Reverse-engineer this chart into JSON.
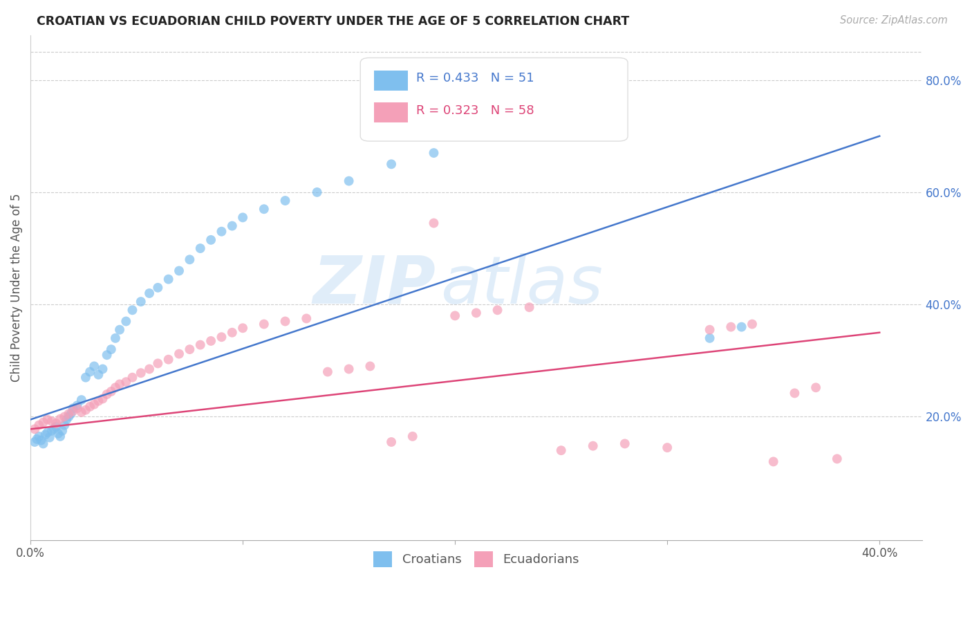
{
  "title": "CROATIAN VS ECUADORIAN CHILD POVERTY UNDER THE AGE OF 5 CORRELATION CHART",
  "source": "Source: ZipAtlas.com",
  "ylabel": "Child Poverty Under the Age of 5",
  "xlim": [
    0.0,
    0.42
  ],
  "ylim": [
    -0.02,
    0.88
  ],
  "x_ticks": [
    0.0,
    0.1,
    0.2,
    0.3,
    0.4
  ],
  "x_tick_labels": [
    "0.0%",
    "",
    "",
    "",
    "40.0%"
  ],
  "y_ticks_right": [
    0.2,
    0.4,
    0.6,
    0.8
  ],
  "y_tick_labels_right": [
    "20.0%",
    "40.0%",
    "60.0%",
    "80.0%"
  ],
  "croatian_color": "#7fbfee",
  "ecuadorian_color": "#f4a0b8",
  "croatian_line_color": "#4477cc",
  "ecuadorian_line_color": "#dd4477",
  "croatian_R": 0.433,
  "croatian_N": 51,
  "ecuadorian_R": 0.323,
  "ecuadorian_N": 58,
  "watermark_zip": "ZIP",
  "watermark_atlas": "atlas",
  "grid_color": "#cccccc",
  "bg_color": "#ffffff",
  "title_color": "#222222",
  "source_color": "#aaaaaa",
  "axis_label_color": "#555555",
  "tick_color": "#aaaaaa",
  "legend_border_color": "#dddddd",
  "croatian_x": [
    0.002,
    0.003,
    0.004,
    0.005,
    0.006,
    0.007,
    0.008,
    0.009,
    0.01,
    0.011,
    0.012,
    0.013,
    0.014,
    0.015,
    0.016,
    0.017,
    0.018,
    0.019,
    0.02,
    0.022,
    0.024,
    0.026,
    0.028,
    0.03,
    0.032,
    0.034,
    0.036,
    0.038,
    0.04,
    0.042,
    0.045,
    0.048,
    0.052,
    0.056,
    0.06,
    0.065,
    0.07,
    0.075,
    0.08,
    0.085,
    0.09,
    0.095,
    0.1,
    0.11,
    0.12,
    0.135,
    0.15,
    0.17,
    0.19,
    0.32,
    0.335
  ],
  "croatian_y": [
    0.155,
    0.16,
    0.165,
    0.158,
    0.152,
    0.168,
    0.172,
    0.163,
    0.175,
    0.178,
    0.182,
    0.17,
    0.165,
    0.175,
    0.185,
    0.195,
    0.2,
    0.205,
    0.215,
    0.22,
    0.23,
    0.27,
    0.28,
    0.29,
    0.275,
    0.285,
    0.31,
    0.32,
    0.34,
    0.355,
    0.37,
    0.39,
    0.405,
    0.42,
    0.43,
    0.445,
    0.46,
    0.48,
    0.5,
    0.515,
    0.53,
    0.54,
    0.555,
    0.57,
    0.585,
    0.6,
    0.62,
    0.65,
    0.67,
    0.34,
    0.36
  ],
  "ecuadorian_x": [
    0.002,
    0.004,
    0.006,
    0.008,
    0.01,
    0.012,
    0.014,
    0.016,
    0.018,
    0.02,
    0.022,
    0.024,
    0.026,
    0.028,
    0.03,
    0.032,
    0.034,
    0.036,
    0.038,
    0.04,
    0.042,
    0.045,
    0.048,
    0.052,
    0.056,
    0.06,
    0.065,
    0.07,
    0.075,
    0.08,
    0.085,
    0.09,
    0.095,
    0.1,
    0.11,
    0.12,
    0.13,
    0.14,
    0.15,
    0.16,
    0.17,
    0.18,
    0.19,
    0.2,
    0.21,
    0.22,
    0.235,
    0.25,
    0.265,
    0.28,
    0.3,
    0.32,
    0.33,
    0.34,
    0.35,
    0.36,
    0.37,
    0.38
  ],
  "ecuadorian_y": [
    0.178,
    0.185,
    0.19,
    0.195,
    0.192,
    0.188,
    0.196,
    0.2,
    0.205,
    0.21,
    0.215,
    0.208,
    0.212,
    0.218,
    0.222,
    0.228,
    0.232,
    0.24,
    0.245,
    0.252,
    0.258,
    0.262,
    0.27,
    0.278,
    0.285,
    0.295,
    0.302,
    0.312,
    0.32,
    0.328,
    0.335,
    0.342,
    0.35,
    0.358,
    0.365,
    0.37,
    0.375,
    0.28,
    0.285,
    0.29,
    0.155,
    0.165,
    0.545,
    0.38,
    0.385,
    0.39,
    0.395,
    0.14,
    0.148,
    0.152,
    0.145,
    0.355,
    0.36,
    0.365,
    0.12,
    0.242,
    0.252,
    0.125
  ]
}
